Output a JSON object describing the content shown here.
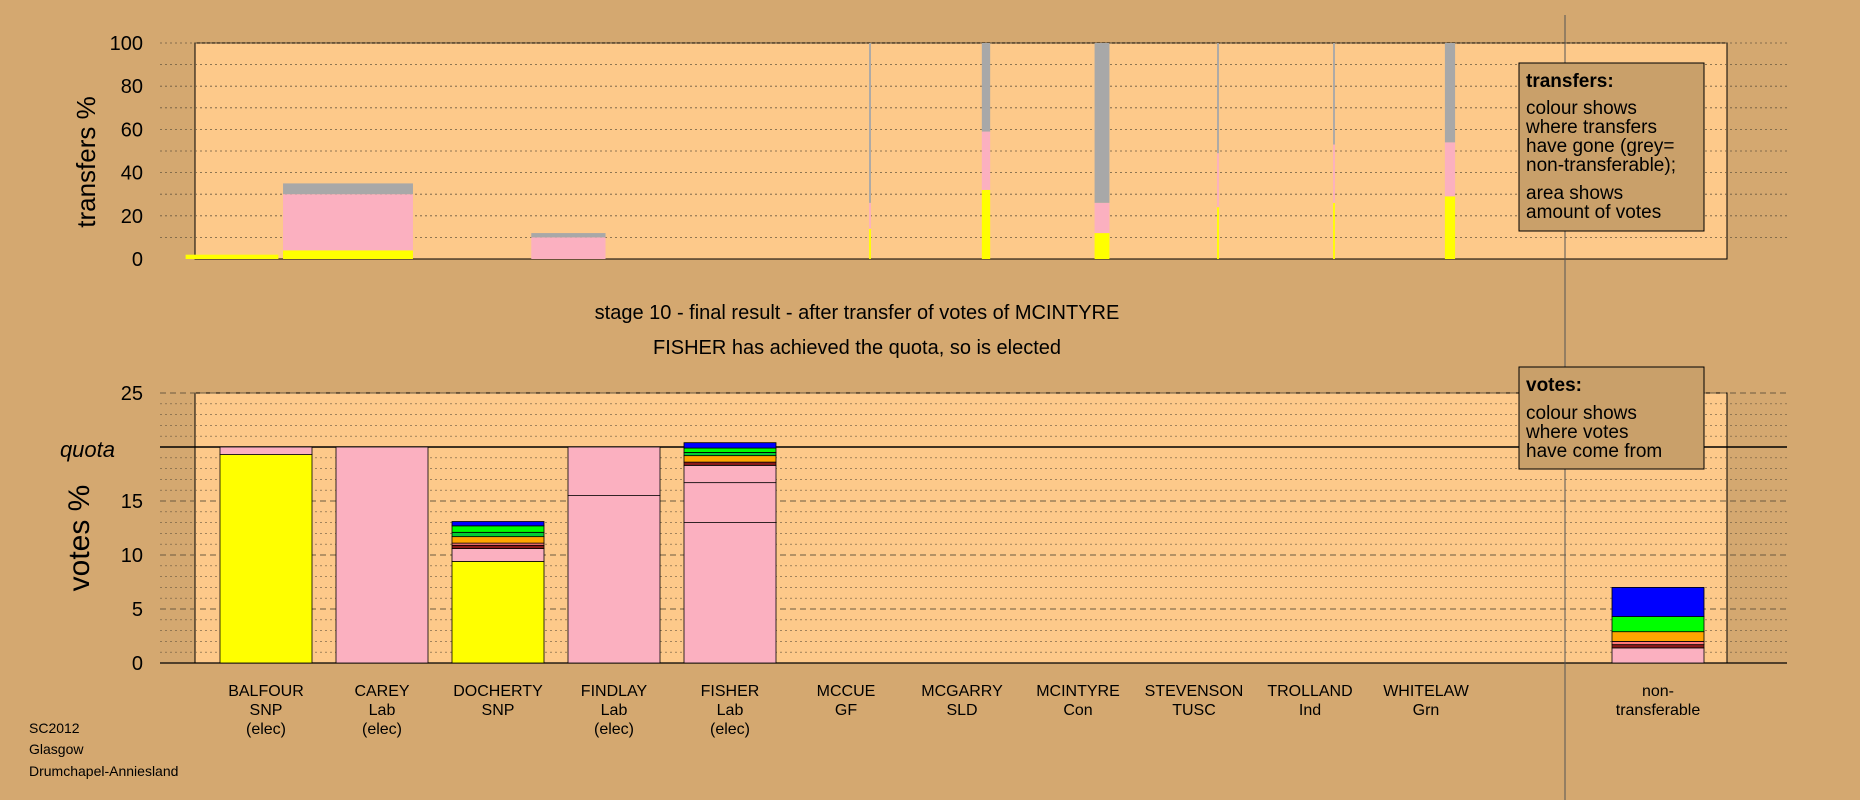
{
  "colors": {
    "background": "#d4a870",
    "plot": "#fdc98a",
    "SNP": "#ffff00",
    "Lab": "#fbb0c0",
    "nontransferable": "#a8a8a8",
    "GF": "#00ff00",
    "SLD": "#ffa500",
    "Con": "#0000ff",
    "TUSC": "#8b1a1a",
    "Ind": "#ff7777",
    "Grn": "#00cc33"
  },
  "top": {
    "ylabel": "transfers %",
    "ticks": [
      "0",
      "20",
      "40",
      "60",
      "80",
      "100"
    ]
  },
  "bottom": {
    "ylabel": "votes %",
    "ticks": [
      "0",
      "5",
      "10",
      "15",
      "25"
    ],
    "quota_label": "quota"
  },
  "headline": {
    "line1": "stage 10 - final result - after transfer of votes of MCINTYRE",
    "line2": "FISHER has achieved the quota, so is elected"
  },
  "legend_transfers": {
    "title": "transfers:",
    "lines": [
      "colour shows",
      "where transfers",
      "have gone (grey=",
      "non-transferable);",
      "area shows",
      "amount of votes"
    ]
  },
  "legend_votes": {
    "title": "votes:",
    "lines": [
      "colour shows",
      "where votes",
      "have come from"
    ]
  },
  "candidates": [
    {
      "name": "BALFOUR",
      "party": "SNP",
      "status": "(elec)"
    },
    {
      "name": "CAREY",
      "party": "Lab",
      "status": "(elec)"
    },
    {
      "name": "DOCHERTY",
      "party": "SNP",
      "status": ""
    },
    {
      "name": "FINDLAY",
      "party": "Lab",
      "status": "(elec)"
    },
    {
      "name": "FISHER",
      "party": "Lab",
      "status": "(elec)"
    },
    {
      "name": "MCCUE",
      "party": "GF",
      "status": ""
    },
    {
      "name": "MCGARRY",
      "party": "SLD",
      "status": ""
    },
    {
      "name": "MCINTYRE",
      "party": "Con",
      "status": ""
    },
    {
      "name": "STEVENSON",
      "party": "TUSC",
      "status": ""
    },
    {
      "name": "TROLLAND",
      "party": "Ind",
      "status": ""
    },
    {
      "name": "WHITELAW",
      "party": "Grn",
      "status": ""
    }
  ],
  "nontransferable_label": [
    "non-",
    "transferable"
  ],
  "footer": [
    "SC2012",
    "Glasgow",
    "Drumchapel-Anniesland"
  ],
  "chart_data": [
    {
      "type": "bar",
      "title": "",
      "ylabel": "transfers %",
      "ylim": [
        0,
        100
      ],
      "grid": true,
      "legend": "top-right",
      "categories": [
        "BALFOUR",
        "CAREY",
        "DOCHERTY",
        "FINDLAY",
        "FISHER",
        "MCCUE",
        "MCGARRY",
        "MCINTYRE",
        "STEVENSON",
        "TROLLAND",
        "WHITELAW"
      ],
      "bars": [
        {
          "x": 0.5,
          "width": 1.0,
          "segments": [
            {
              "party": "SNP",
              "value": 2
            }
          ]
        },
        {
          "x": 1.5,
          "width": 1.4,
          "segments": [
            {
              "party": "SNP",
              "value": 4
            },
            {
              "party": "Lab",
              "value": 26
            },
            {
              "party": "nontransferable",
              "value": 5
            }
          ]
        },
        {
          "x": 3.4,
          "width": 0.8,
          "segments": [
            {
              "party": "Lab",
              "value": 10
            },
            {
              "party": "nontransferable",
              "value": 2
            }
          ]
        },
        {
          "x": 6.0,
          "width": 0.02,
          "segments": [
            {
              "party": "SNP",
              "value": 14
            },
            {
              "party": "Lab",
              "value": 12
            },
            {
              "party": "nontransferable",
              "value": 74
            }
          ]
        },
        {
          "x": 7.0,
          "width": 0.09,
          "segments": [
            {
              "party": "SNP",
              "value": 32
            },
            {
              "party": "Lab",
              "value": 27
            },
            {
              "party": "nontransferable",
              "value": 41
            }
          ]
        },
        {
          "x": 8.0,
          "width": 0.16,
          "segments": [
            {
              "party": "SNP",
              "value": 12
            },
            {
              "party": "Lab",
              "value": 14
            },
            {
              "party": "nontransferable",
              "value": 74
            }
          ]
        },
        {
          "x": 9.0,
          "width": 0.02,
          "segments": [
            {
              "party": "SNP",
              "value": 24
            },
            {
              "party": "Lab",
              "value": 25
            },
            {
              "party": "nontransferable",
              "value": 51
            }
          ]
        },
        {
          "x": 10.0,
          "width": 0.02,
          "segments": [
            {
              "party": "SNP",
              "value": 26
            },
            {
              "party": "Lab",
              "value": 27
            },
            {
              "party": "nontransferable",
              "value": 47
            }
          ]
        },
        {
          "x": 11.0,
          "width": 0.11,
          "segments": [
            {
              "party": "SNP",
              "value": 29
            },
            {
              "party": "Lab",
              "value": 25
            },
            {
              "party": "nontransferable",
              "value": 46
            }
          ]
        }
      ]
    },
    {
      "type": "bar",
      "title": "",
      "ylabel": "votes %",
      "ylim": [
        0,
        25
      ],
      "quota": 20,
      "grid": true,
      "legend": "top-right",
      "categories": [
        "BALFOUR",
        "CAREY",
        "DOCHERTY",
        "FINDLAY",
        "FISHER",
        "MCCUE",
        "MCGARRY",
        "MCINTYRE",
        "STEVENSON",
        "TROLLAND",
        "WHITELAW",
        "non-transferable"
      ],
      "bars": [
        {
          "label": "BALFOUR",
          "segments": [
            {
              "party": "SNP",
              "value": 19.3
            },
            {
              "party": "Lab",
              "value": 0.7
            }
          ]
        },
        {
          "label": "CAREY",
          "segments": [
            {
              "party": "Lab",
              "value": 20.0
            }
          ]
        },
        {
          "label": "DOCHERTY",
          "segments": [
            {
              "party": "SNP",
              "value": 9.4
            },
            {
              "party": "Lab",
              "value": 1.2
            },
            {
              "party": "TUSC",
              "value": 0.3
            },
            {
              "party": "Ind",
              "value": 0.2
            },
            {
              "party": "SLD",
              "value": 0.6
            },
            {
              "party": "Grn",
              "value": 0.4
            },
            {
              "party": "GF",
              "value": 0.6
            },
            {
              "party": "Con",
              "value": 0.4
            }
          ]
        },
        {
          "label": "FINDLAY",
          "segments": [
            {
              "party": "Lab",
              "value": 15.5
            },
            {
              "party": "Lab",
              "value": 4.5
            }
          ]
        },
        {
          "label": "FISHER",
          "segments": [
            {
              "party": "Lab",
              "value": 13.0
            },
            {
              "party": "Lab",
              "value": 3.7
            },
            {
              "party": "Lab",
              "value": 1.6
            },
            {
              "party": "TUSC",
              "value": 0.3
            },
            {
              "party": "SLD",
              "value": 0.6
            },
            {
              "party": "Grn",
              "value": 0.3
            },
            {
              "party": "GF",
              "value": 0.4
            },
            {
              "party": "Con",
              "value": 0.5
            }
          ]
        },
        {
          "label": "MCCUE",
          "segments": []
        },
        {
          "label": "MCGARRY",
          "segments": []
        },
        {
          "label": "MCINTYRE",
          "segments": []
        },
        {
          "label": "STEVENSON",
          "segments": []
        },
        {
          "label": "TROLLAND",
          "segments": []
        },
        {
          "label": "WHITELAW",
          "segments": []
        },
        {
          "label": "non-transferable",
          "segments": [
            {
              "party": "Lab",
              "value": 1.4
            },
            {
              "party": "TUSC",
              "value": 0.3
            },
            {
              "party": "Ind",
              "value": 0.3
            },
            {
              "party": "SLD",
              "value": 0.9
            },
            {
              "party": "GF",
              "value": 1.4
            },
            {
              "party": "Con",
              "value": 2.7
            }
          ]
        }
      ]
    }
  ]
}
